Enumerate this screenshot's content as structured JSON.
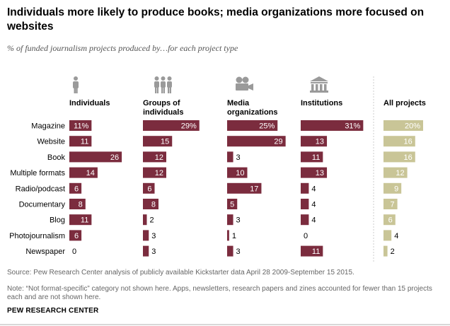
{
  "title": "Individuals more likely to produce books; media organizations more focused on websites",
  "subtitle": "% of funded journalism projects produced by…for each project type",
  "source": "Source: Pew Research Center analysis of publicly available Kickstarter data April 28 2009-September 15 2015.",
  "note": "Note: “Not format-specific” category not shown here. Apps, newsletters, research papers and zines accounted for fewer than 15 projects each and are not shown here.",
  "brand": "PEW RESEARCH CENTER",
  "colors": {
    "bar": "#7b2c3e",
    "all_projects_bar": "#c9c597",
    "icon": "#9a9a9a",
    "divider": "#cccccc"
  },
  "chart_data": {
    "type": "bar",
    "orientation": "horizontal",
    "title": "Individuals more likely to produce books; media organizations more focused on websites",
    "categories": [
      "Magazine",
      "Website",
      "Book",
      "Multiple formats",
      "Radio/podcast",
      "Documentary",
      "Blog",
      "Photojournalism",
      "Newspaper"
    ],
    "series": [
      {
        "name": "Individuals",
        "icon": "person-icon",
        "values": [
          11,
          11,
          26,
          14,
          6,
          8,
          11,
          6,
          0
        ],
        "labels": [
          "11%",
          "11",
          "26",
          "14",
          "6",
          "8",
          "11",
          "6",
          "0"
        ]
      },
      {
        "name": "Groups of individuals",
        "icon": "group-icon",
        "values": [
          29,
          15,
          12,
          12,
          6,
          8,
          2,
          3,
          3
        ],
        "labels": [
          "29%",
          "15",
          "12",
          "12",
          "6",
          "8",
          "2",
          "3",
          "3"
        ]
      },
      {
        "name": "Media organizations",
        "icon": "camera-icon",
        "values": [
          25,
          29,
          3,
          10,
          17,
          5,
          3,
          1,
          3
        ],
        "labels": [
          "25%",
          "29",
          "3",
          "10",
          "17",
          "5",
          "3",
          "1",
          "3"
        ]
      },
      {
        "name": "Institutions",
        "icon": "institution-icon",
        "values": [
          31,
          13,
          11,
          13,
          4,
          4,
          4,
          0,
          11
        ],
        "labels": [
          "31%",
          "13",
          "11",
          "13",
          "4",
          "4",
          "4",
          "0",
          "11"
        ]
      },
      {
        "name": "All projects",
        "icon": "",
        "values": [
          20,
          16,
          16,
          12,
          9,
          7,
          6,
          4,
          2
        ],
        "labels": [
          "20%",
          "16",
          "16",
          "12",
          "9",
          "7",
          "6",
          "4",
          "2"
        ]
      }
    ],
    "label_threshold": 5
  }
}
